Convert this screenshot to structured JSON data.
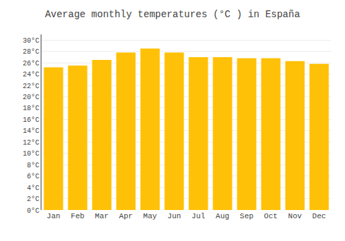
{
  "chart_data": {
    "type": "bar",
    "title": "Average monthly temperatures (°C ) in España",
    "categories": [
      "Jan",
      "Feb",
      "Mar",
      "Apr",
      "May",
      "Jun",
      "Jul",
      "Aug",
      "Sep",
      "Oct",
      "Nov",
      "Dec"
    ],
    "values": [
      25.2,
      25.5,
      26.5,
      27.8,
      28.5,
      27.8,
      27.0,
      27.0,
      26.8,
      26.8,
      26.3,
      25.8
    ],
    "color": "#FFC107",
    "ylim": [
      0,
      31
    ],
    "yticks": [
      {
        "value": 0,
        "label": "0°C"
      },
      {
        "value": 2,
        "label": "2°C"
      },
      {
        "value": 4,
        "label": "4°C"
      },
      {
        "value": 6,
        "label": "6°C"
      },
      {
        "value": 8,
        "label": "8°C"
      },
      {
        "value": 10,
        "label": "10°C"
      },
      {
        "value": 12,
        "label": "12°C"
      },
      {
        "value": 14,
        "label": "14°C"
      },
      {
        "value": 16,
        "label": "16°C"
      },
      {
        "value": 18,
        "label": "18°C"
      },
      {
        "value": 20,
        "label": "20°C"
      },
      {
        "value": 22,
        "label": "22°C"
      },
      {
        "value": 24,
        "label": "24°C"
      },
      {
        "value": 26,
        "label": "26°C"
      },
      {
        "value": 28,
        "label": "28°C"
      },
      {
        "value": 30,
        "label": "30°C"
      }
    ],
    "grid": true
  }
}
